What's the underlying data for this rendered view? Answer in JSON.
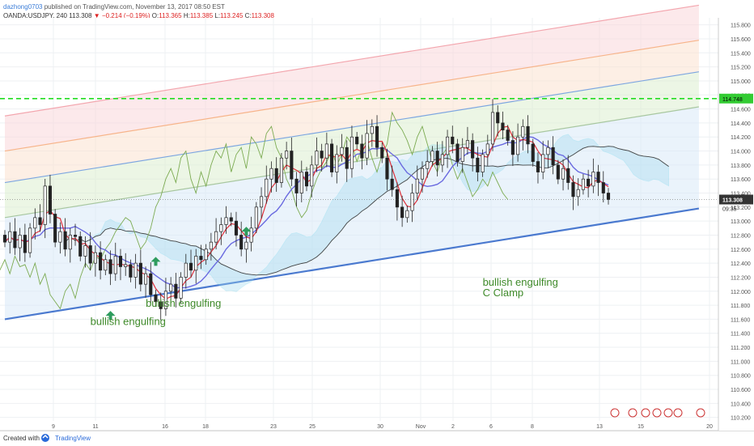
{
  "header": {
    "user": "dazhong0703",
    "published": "published on TradingView.com, November 13, 2017 08:50 EST",
    "symbol": "OANDA:USDJPY, 240",
    "last": "113.308",
    "change": "−0.214 (−0.19%)",
    "o_label": "O:",
    "o": "113.365",
    "h_label": "H:",
    "h": "113.385",
    "l_label": "L:",
    "l": "113.245",
    "c_label": "C:",
    "c": "113.308"
  },
  "footer": {
    "created": "Created with",
    "brand": "TradingView"
  },
  "colors": {
    "bull": "#2e9c5d",
    "bear": "#e2352f",
    "green_line": "#22dd22",
    "blue_line": "#4a79cf",
    "price_marker": "#333333"
  },
  "chart_data": {
    "type": "candlestick",
    "price_axis_labels": [
      "115.800",
      "115.600",
      "115.400",
      "115.200",
      "115.000",
      "114.800",
      "114.600",
      "114.400",
      "114.200",
      "114.000",
      "113.800",
      "113.600",
      "113.400",
      "113.200",
      "113.000",
      "112.800",
      "112.600",
      "112.400",
      "112.200",
      "112.000",
      "111.800",
      "111.600",
      "111.400",
      "111.200",
      "111.000",
      "110.800",
      "110.600",
      "110.400",
      "110.200"
    ],
    "ylim": [
      110.15,
      115.9
    ],
    "time_labels": [
      "9",
      "11",
      "16",
      "18",
      "23",
      "25",
      "30",
      "Nov",
      "2",
      "6",
      "8",
      "13",
      "15",
      "20"
    ],
    "horizontal_level": 114.748,
    "horizontal_level_label": "114.748",
    "last_price_label": "113.308",
    "countdown_label": "09:35",
    "annotations": [
      {
        "text": "bullish engulfing",
        "x_bar": 17,
        "y": 111.52
      },
      {
        "text": "bullish engulfing",
        "x_bar": 28,
        "y": 111.78
      },
      {
        "text": "bullish engulfing",
        "x_bar": 95,
        "y": 112.08
      },
      {
        "text": "C Clamp",
        "x_bar": 95,
        "y": 111.93
      }
    ],
    "signal_arrows": [
      {
        "x_bar": 21,
        "y": 111.65
      },
      {
        "x_bar": 30,
        "y": 112.42
      },
      {
        "x_bar": 48,
        "y": 112.85
      }
    ],
    "close": [
      112.7,
      112.85,
      112.62,
      112.8,
      112.55,
      112.9,
      113.05,
      112.95,
      113.5,
      113.1,
      112.7,
      112.85,
      112.6,
      112.8,
      112.78,
      112.5,
      112.65,
      112.4,
      112.55,
      112.3,
      112.45,
      112.25,
      112.5,
      112.35,
      112.38,
      112.2,
      112.4,
      112.1,
      112.25,
      111.95,
      111.85,
      111.75,
      112.0,
      112.1,
      111.9,
      112.2,
      112.4,
      112.3,
      112.5,
      112.45,
      112.6,
      112.7,
      112.85,
      112.95,
      113.05,
      113.0,
      112.8,
      112.6,
      112.7,
      112.9,
      113.2,
      113.35,
      113.6,
      113.75,
      113.55,
      113.9,
      114.0,
      113.6,
      113.4,
      113.7,
      113.5,
      113.8,
      114.0,
      113.9,
      114.1,
      113.7,
      113.95,
      114.05,
      113.75,
      114.2,
      114.1,
      113.9,
      114.25,
      114.35,
      114.05,
      113.9,
      113.6,
      113.45,
      113.2,
      113.05,
      113.15,
      113.4,
      113.6,
      113.75,
      113.85,
      114.0,
      113.8,
      113.95,
      114.2,
      114.1,
      113.85,
      114.05,
      114.15,
      113.9,
      113.7,
      113.95,
      114.1,
      114.55,
      114.4,
      114.3,
      114.15,
      113.95,
      114.2,
      114.35,
      114.1,
      113.85,
      113.7,
      113.95,
      114.05,
      113.8,
      113.6,
      113.75,
      113.55,
      113.35,
      113.45,
      113.6,
      113.5,
      113.7,
      113.55,
      113.4,
      113.308
    ],
    "hl_pad": 0.18,
    "overlays": [
      "ichimoku cloud",
      "regression channel",
      "tenkan line",
      "kijun line",
      "lagging span"
    ]
  }
}
